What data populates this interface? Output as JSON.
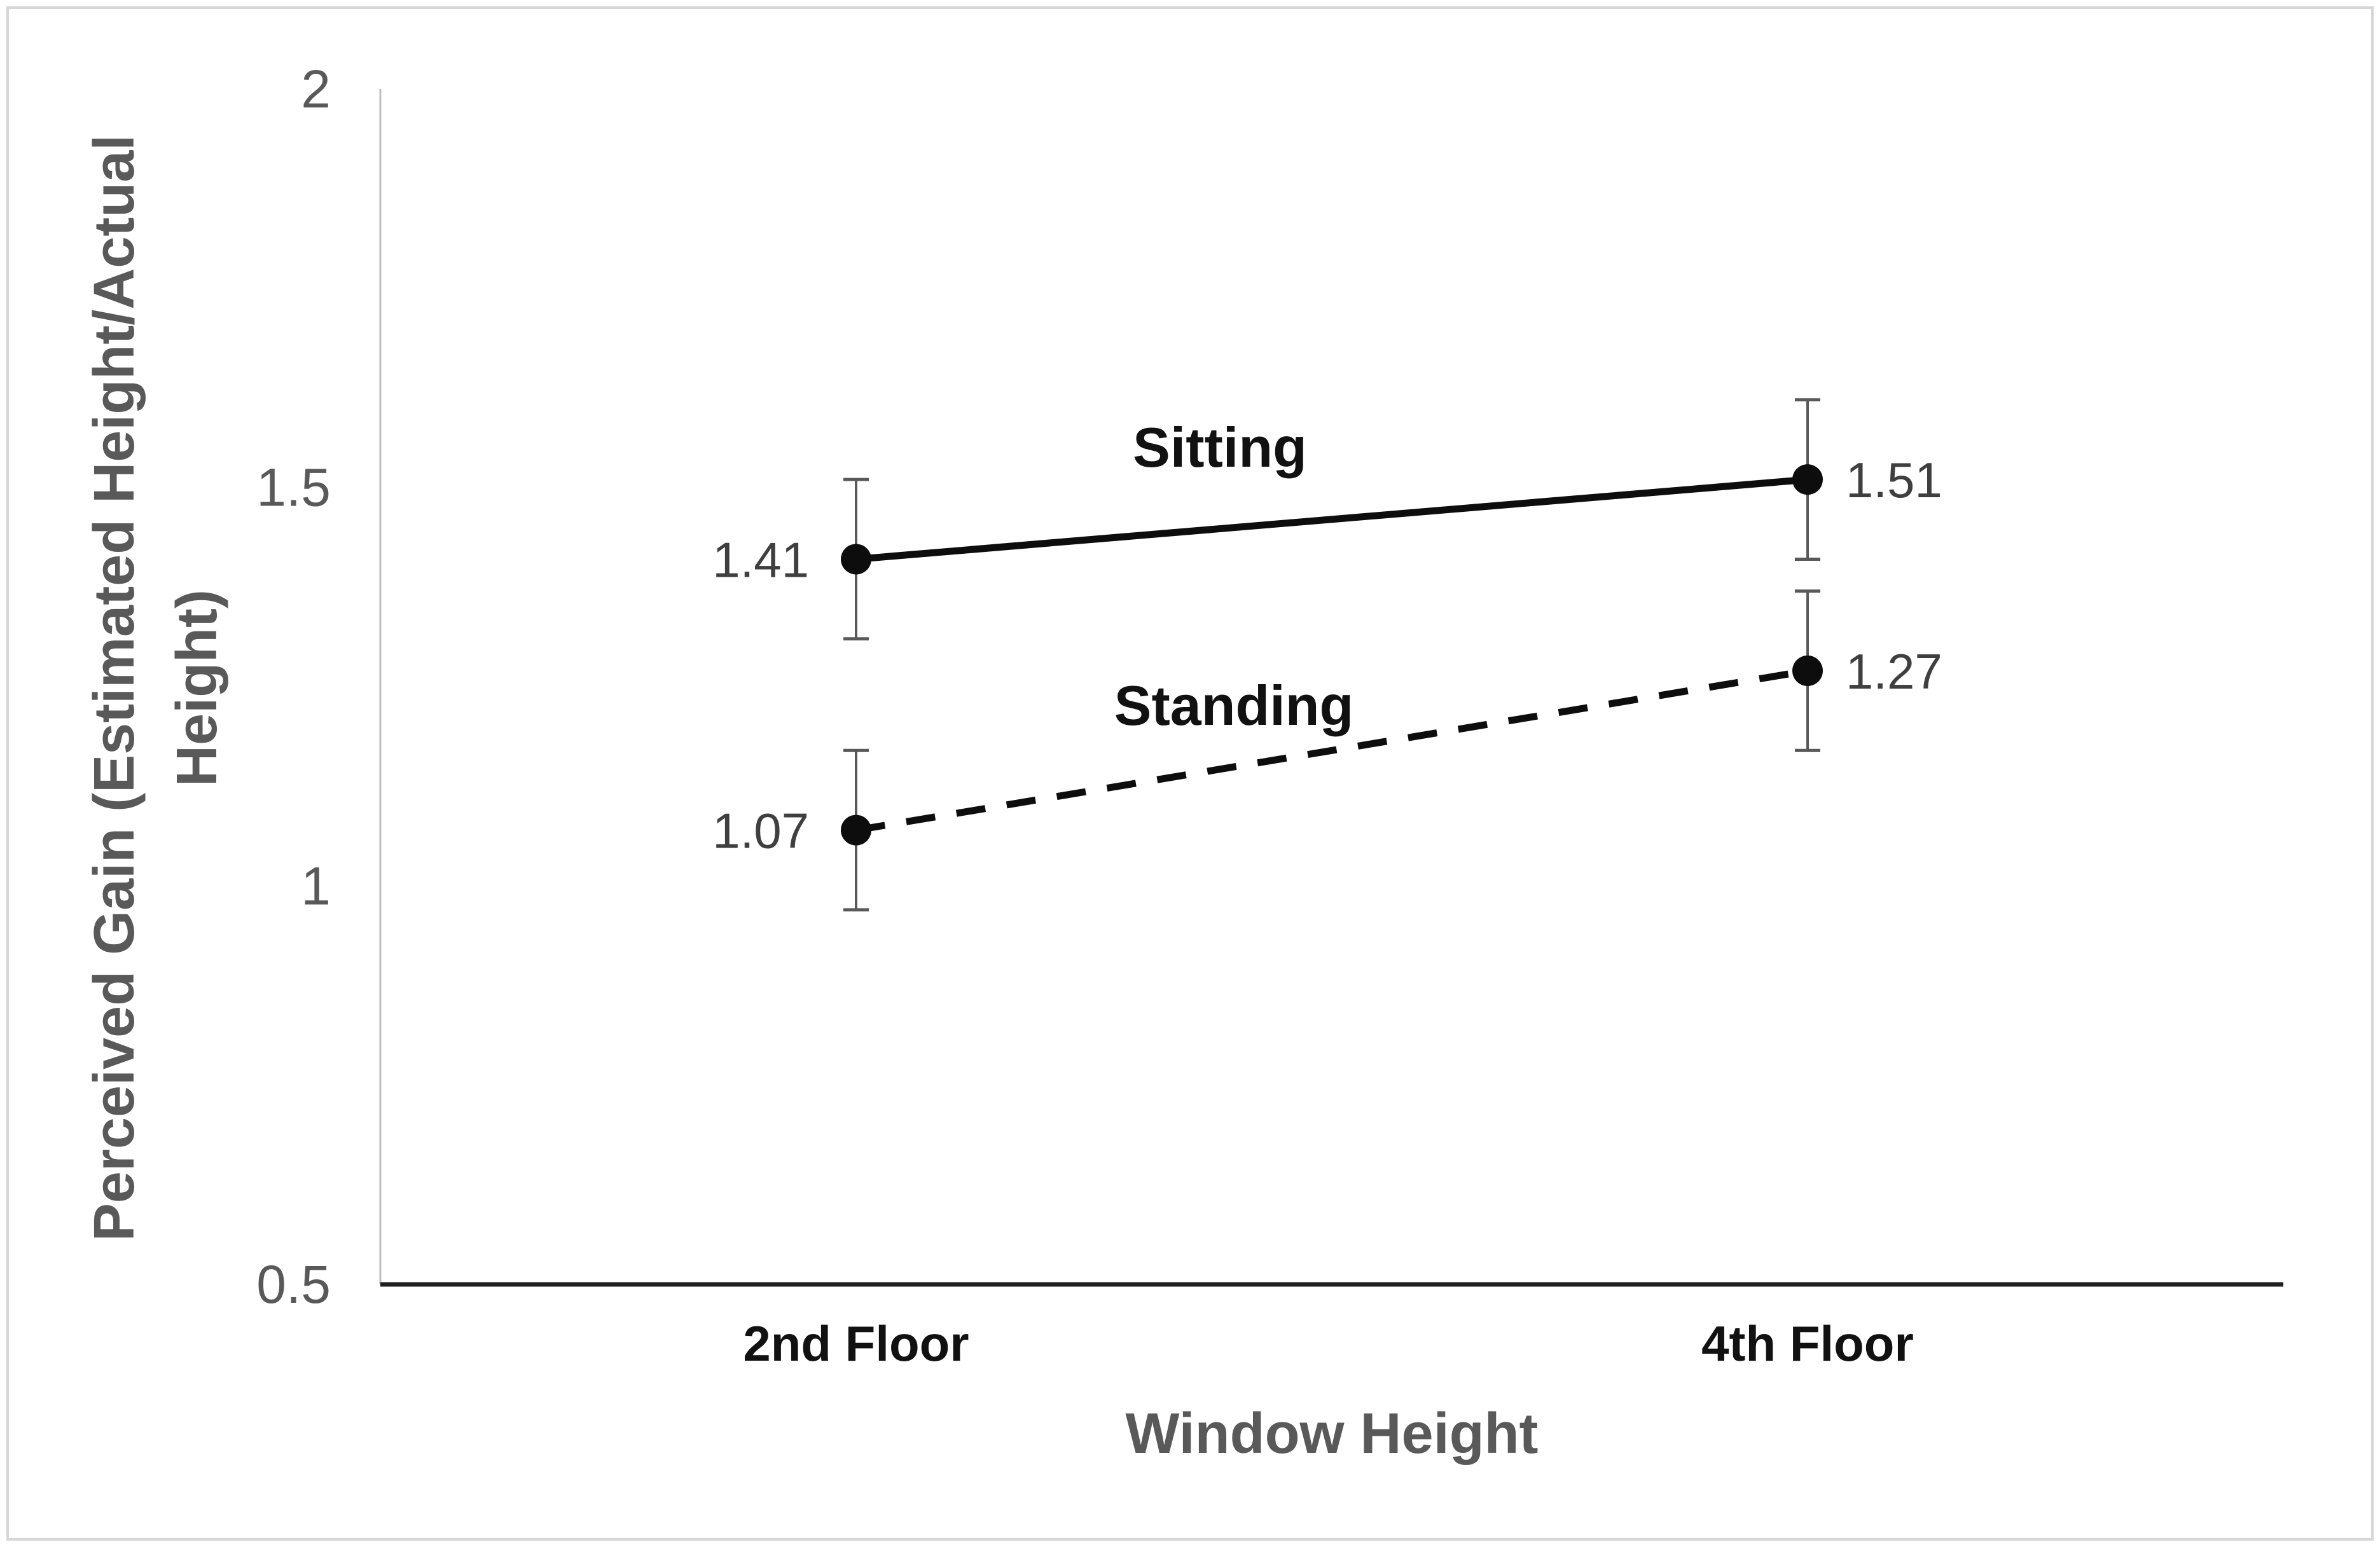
{
  "chart_data": {
    "type": "line",
    "title": "",
    "xlabel": "Window Height",
    "ylabel": "Perceived Gain (Estimated Height/Actual Height)",
    "ylabel_lines": [
      "Perceived Gain (Estimated Height/Actual",
      "Height)"
    ],
    "categories": [
      "2nd Floor",
      "4th Floor"
    ],
    "series": [
      {
        "name": "Sitting",
        "line_style": "solid",
        "marker": "filled-circle",
        "values": [
          1.41,
          1.51
        ],
        "data_labels": [
          "1.41",
          "1.51"
        ],
        "error_bar_half_height": 0.1
      },
      {
        "name": "Standing",
        "line_style": "dashed",
        "marker": "filled-circle",
        "values": [
          1.07,
          1.27
        ],
        "data_labels": [
          "1.07",
          "1.27"
        ],
        "error_bar_half_height": 0.1
      }
    ],
    "yticks": [
      {
        "value": 2,
        "label": "2"
      },
      {
        "value": 1.5,
        "label": "1.5"
      },
      {
        "value": 1,
        "label": "1"
      },
      {
        "value": 0.5,
        "label": "0.5"
      }
    ],
    "ylim": [
      0.5,
      2
    ],
    "grid": false,
    "legend": "inline-series-labels",
    "colors": {
      "background": "#ffffff",
      "series_line": "#0d0d0d",
      "marker": "#0d0d0d",
      "tick_label": "#595959",
      "axis_title": "#595959",
      "data_label": "#3f3f3f",
      "category_label": "#111111",
      "series_label": "#111111",
      "x_axis_line": "#1f1f1f",
      "y_axis_line": "#bfbfbf",
      "error_bar": "#595959",
      "frame_border": "#d6d6d6"
    }
  }
}
